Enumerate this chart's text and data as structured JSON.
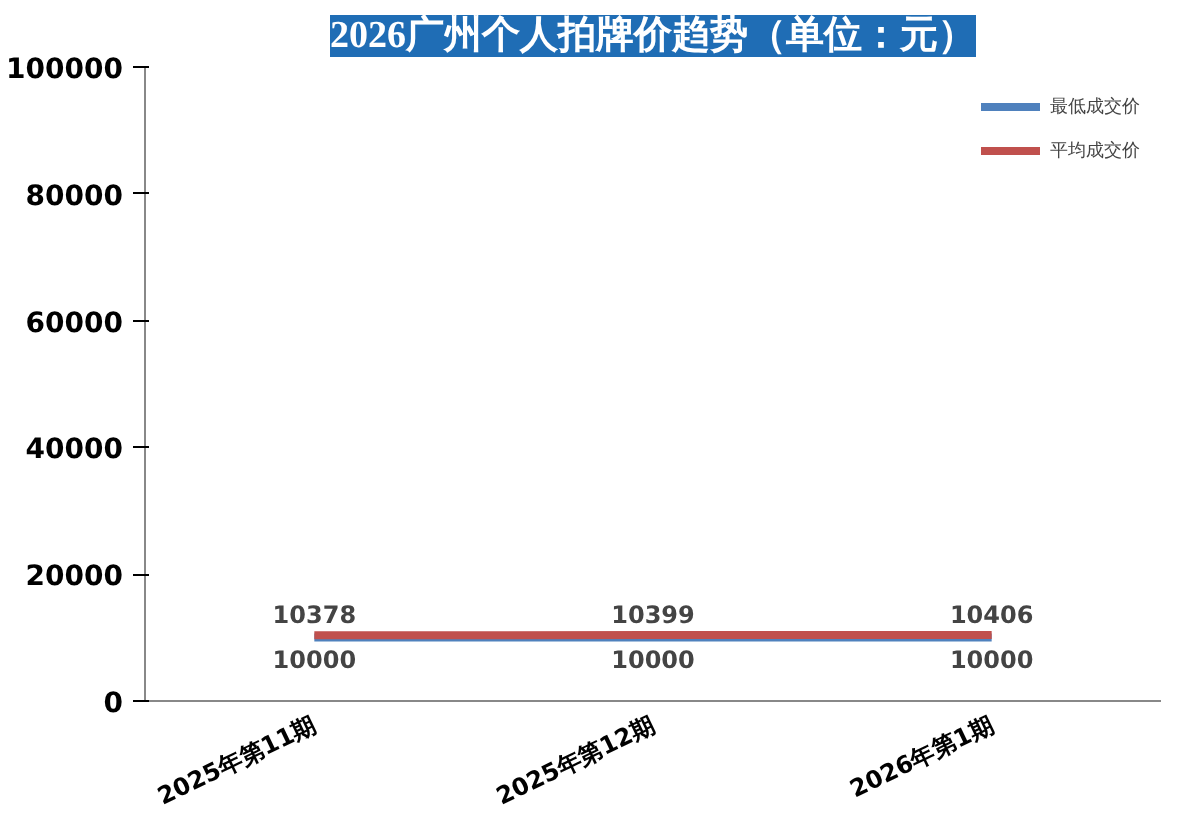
{
  "chart_data": {
    "type": "line",
    "title": "2026广州个人拍牌价趋势（单位：元）",
    "categories": [
      "2025年第11期",
      "2025年第12期",
      "2026年第1期"
    ],
    "series": [
      {
        "name": "最低成交价",
        "color": "#4f81bd",
        "values": [
          10000,
          10000,
          10000
        ]
      },
      {
        "name": "平均成交价",
        "color": "#c0504d",
        "values": [
          10378,
          10399,
          10406
        ]
      }
    ],
    "ylim": [
      0,
      100000
    ],
    "yticks": [
      0,
      20000,
      40000,
      60000,
      80000,
      100000
    ],
    "grid": false,
    "legend": "top right",
    "data_labels": true,
    "marker": "none",
    "line_style": "solid"
  }
}
